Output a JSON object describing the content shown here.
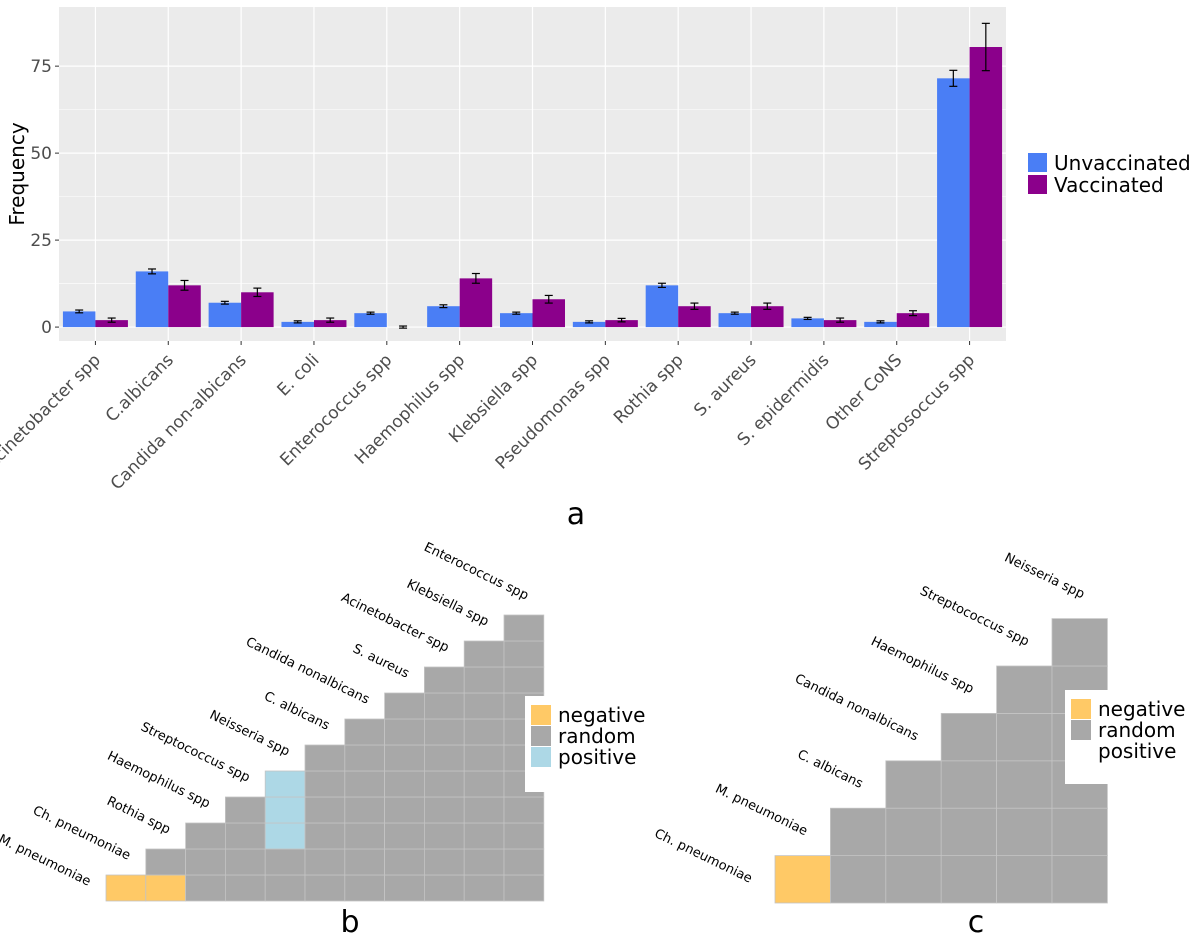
{
  "colors": {
    "unvaccinated": "#4a7ef5",
    "vaccinated": "#8b008b",
    "panel_bg": "#ebebeb",
    "grid": "#ffffff",
    "negative": "#ffc966",
    "random": "#a8a8a8",
    "positive": "#add8e6"
  },
  "chart_data": [
    {
      "id": "a",
      "type": "bar",
      "panel_label": "a",
      "ylabel": "Frequency",
      "xlabel": "",
      "ylim": [
        -4,
        92
      ],
      "yticks": [
        0,
        25,
        50,
        75
      ],
      "categories": [
        "Acinetobacter spp",
        "C.albicans",
        "Candida non-albicans",
        "E. coli",
        "Enterococcus spp",
        "Haemophilus spp",
        "Klebsiella spp",
        "Pseudomonas spp",
        "Rothia spp",
        "S. aureus",
        "S. epidermidis",
        "Other CoNS",
        "Streptosoccus spp"
      ],
      "series": [
        {
          "name": "Unvaccinated",
          "values": [
            4.5,
            16,
            7,
            1.5,
            4,
            6,
            4,
            1.5,
            12,
            4,
            2.5,
            1.5,
            71.5
          ],
          "err": [
            0.4,
            0.7,
            0.4,
            0.3,
            0.3,
            0.4,
            0.3,
            0.3,
            0.6,
            0.3,
            0.3,
            0.3,
            2.3
          ]
        },
        {
          "name": "Vaccinated",
          "values": [
            2,
            12,
            10,
            2,
            0,
            14,
            8,
            2,
            6,
            6,
            2,
            4,
            80.5
          ],
          "err": [
            0.6,
            1.4,
            1.2,
            0.6,
            0.3,
            1.4,
            1.1,
            0.5,
            0.9,
            0.9,
            0.6,
            0.7,
            6.8
          ]
        }
      ],
      "legend": {
        "position": "right",
        "entries": [
          "Unvaccinated",
          "Vaccinated"
        ]
      }
    },
    {
      "id": "b",
      "type": "heatmap",
      "panel_label": "b",
      "labels": [
        "M. pneumoniae",
        "Ch. pneumoniae",
        "Rothia spp",
        "Haemophilus spp",
        "Streptococcus spp",
        "Neisseria spp",
        "C. albicans",
        "Candida nonalbicans",
        "S. aureus",
        "Acinetobacter spp",
        "Klebsiella spp",
        "Enterococcus spp"
      ],
      "cells": [
        [
          "negative",
          "negative",
          "random",
          "random",
          "random",
          "random",
          "random",
          "random",
          "random",
          "random",
          "random"
        ],
        [
          "random",
          "random",
          "random",
          "random",
          "random",
          "random",
          "random",
          "random",
          "random",
          "random"
        ],
        [
          "random",
          "random",
          "positive",
          "random",
          "random",
          "random",
          "random",
          "random",
          "random"
        ],
        [
          "random",
          "positive",
          "random",
          "random",
          "random",
          "random",
          "random",
          "random"
        ],
        [
          "positive",
          "random",
          "random",
          "random",
          "random",
          "random",
          "random"
        ],
        [
          "random",
          "random",
          "random",
          "random",
          "random",
          "random"
        ],
        [
          "random",
          "random",
          "random",
          "random",
          "random"
        ],
        [
          "random",
          "random",
          "random",
          "random"
        ],
        [
          "random",
          "random",
          "random"
        ],
        [
          "random",
          "random"
        ],
        [
          "random"
        ]
      ],
      "legend": {
        "position": "right",
        "entries": [
          "negative",
          "random",
          "positive"
        ]
      }
    },
    {
      "id": "c",
      "type": "heatmap",
      "panel_label": "c",
      "labels": [
        "Ch. pneumoniae",
        "M. pneumoniae",
        "C. albicans",
        "Candida nonalbicans",
        "Haemophilus spp",
        "Streptococcus spp",
        "Neisseria spp"
      ],
      "cells": [
        [
          "negative",
          "random",
          "random",
          "random",
          "random",
          "random"
        ],
        [
          "random",
          "random",
          "random",
          "random",
          "random"
        ],
        [
          "random",
          "random",
          "random",
          "random"
        ],
        [
          "random",
          "random",
          "random"
        ],
        [
          "random",
          "random"
        ],
        [
          "random"
        ]
      ],
      "legend": {
        "position": "right",
        "entries": [
          "negative",
          "random",
          "positive"
        ],
        "swatches": [
          true,
          true,
          false
        ]
      }
    }
  ]
}
